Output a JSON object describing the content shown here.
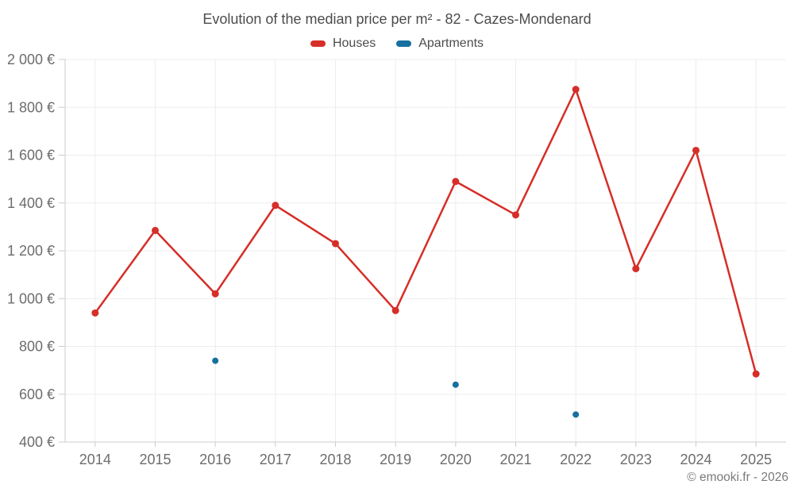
{
  "footer": {
    "copyright": "© emooki.fr - 2026"
  },
  "chart_data": {
    "type": "line",
    "title": "Evolution of the median price per m² - 82 - Cazes-Mondenard",
    "categories": [
      "2014",
      "2015",
      "2016",
      "2017",
      "2018",
      "2019",
      "2020",
      "2021",
      "2022",
      "2023",
      "2024",
      "2025"
    ],
    "series": [
      {
        "name": "Houses",
        "color": "#d62e28",
        "marker_radius": 4.5,
        "line_width": 2.5,
        "values": [
          940,
          1285,
          1020,
          1390,
          1230,
          950,
          1490,
          1350,
          1875,
          1125,
          1620,
          685
        ]
      },
      {
        "name": "Apartments",
        "color": "#1670a0",
        "marker_radius": 4,
        "line_width": 2.5,
        "values": [
          null,
          null,
          740,
          null,
          null,
          null,
          640,
          null,
          515,
          null,
          null,
          null
        ]
      }
    ],
    "ylim": [
      400,
      2000
    ],
    "y_ticks": [
      {
        "value": 400,
        "label": "400 €"
      },
      {
        "value": 600,
        "label": "600 €"
      },
      {
        "value": 800,
        "label": "800 €"
      },
      {
        "value": 1000,
        "label": "1 000 €"
      },
      {
        "value": 1200,
        "label": "1 200 €"
      },
      {
        "value": 1400,
        "label": "1 400 €"
      },
      {
        "value": 1600,
        "label": "1 600 €"
      },
      {
        "value": 1800,
        "label": "1 800 €"
      },
      {
        "value": 2000,
        "label": "2 000 €"
      }
    ],
    "xlabel": "",
    "ylabel": "",
    "grid": true,
    "legend_position": "top",
    "colors": {
      "grid": "#ededed",
      "axis": "#cccccc",
      "tick_label": "#6d6d6d",
      "title": "#4c4c4c"
    }
  }
}
